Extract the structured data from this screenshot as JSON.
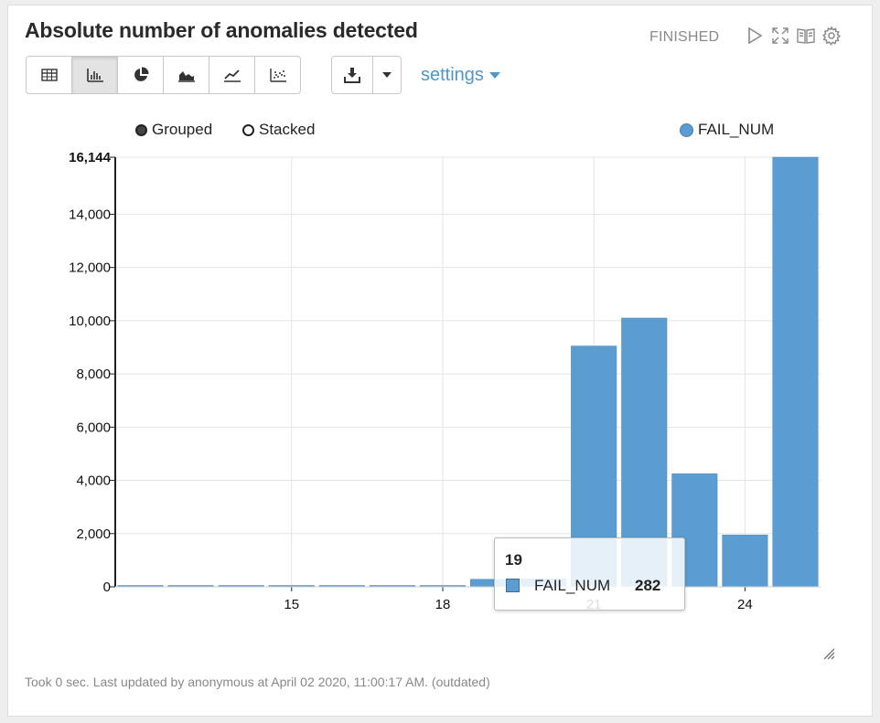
{
  "paragraph": {
    "title": "Absolute number of anomalies detected",
    "status": "FINISHED",
    "footer": "Took 0 sec. Last updated by anonymous at April 02 2020, 11:00:17 AM. (outdated)"
  },
  "controls": {
    "icons": [
      "play-icon",
      "expand-icon",
      "book-icon",
      "gear-icon"
    ]
  },
  "toolbar": {
    "buttons": [
      "table-icon",
      "bar-chart-icon",
      "pie-chart-icon",
      "area-chart-icon",
      "line-chart-icon",
      "scatter-chart-icon"
    ],
    "active_index": 1,
    "download_icon": "download-icon",
    "settings_label": "settings"
  },
  "chart_controls": {
    "grouped_label": "Grouped",
    "stacked_label": "Stacked",
    "mode": "Grouped"
  },
  "tooltip": {
    "header": "19",
    "series": "FAIL_NUM",
    "value": "282"
  },
  "colors": {
    "bar": "#5b9dd0",
    "bar_stroke": "#4a8cc0",
    "accent": "#4d97cc"
  },
  "chart_data": {
    "type": "bar",
    "x": [
      12,
      13,
      14,
      15,
      16,
      17,
      18,
      19,
      20,
      21,
      22,
      23,
      24,
      25
    ],
    "series": [
      {
        "name": "FAIL_NUM",
        "values": [
          20,
          20,
          20,
          20,
          20,
          20,
          20,
          282,
          300,
          9050,
          10100,
          4250,
          1950,
          16144
        ]
      }
    ],
    "xticks": [
      "15",
      "18",
      "21",
      "24"
    ],
    "yticks": [
      "0",
      "2,000",
      "4,000",
      "6,000",
      "8,000",
      "10,000",
      "12,000",
      "14,000",
      "16,144"
    ],
    "ylim": [
      0,
      16144
    ],
    "grid": true,
    "legend": "top-right"
  }
}
